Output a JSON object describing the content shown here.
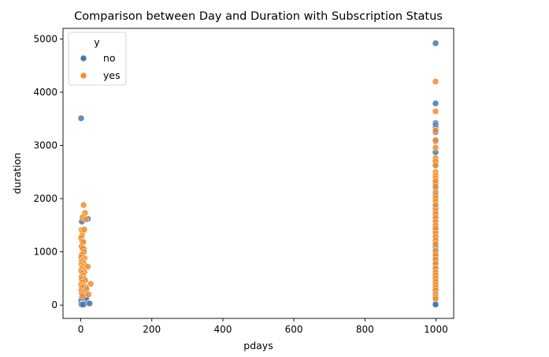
{
  "chart_data": {
    "type": "scatter",
    "title": "Comparison between Day and Duration with Subscription Status",
    "xlabel": "pdays",
    "ylabel": "duration",
    "xlim": [
      -50,
      1050
    ],
    "ylim": [
      -250,
      5200
    ],
    "xticks": [
      0,
      200,
      400,
      600,
      800,
      1000
    ],
    "yticks": [
      0,
      1000,
      2000,
      3000,
      4000,
      5000
    ],
    "grid": false,
    "legend": {
      "title": "y",
      "placement": "top-left"
    },
    "series": [
      {
        "name": "no",
        "color": "#4c78a8",
        "points": [
          [
            1,
            3510
          ],
          [
            3,
            1570
          ],
          [
            20,
            1620
          ],
          [
            8,
            1060
          ],
          [
            5,
            950
          ],
          [
            2,
            820
          ],
          [
            6,
            700
          ],
          [
            10,
            620
          ],
          [
            4,
            540
          ],
          [
            12,
            480
          ],
          [
            3,
            430
          ],
          [
            7,
            380
          ],
          [
            15,
            330
          ],
          [
            2,
            290
          ],
          [
            9,
            250
          ],
          [
            5,
            210
          ],
          [
            11,
            180
          ],
          [
            3,
            150
          ],
          [
            6,
            120
          ],
          [
            14,
            100
          ],
          [
            1,
            80
          ],
          [
            8,
            60
          ],
          [
            18,
            45
          ],
          [
            4,
            30
          ],
          [
            10,
            20
          ],
          [
            2,
            12
          ],
          [
            6,
            8
          ],
          [
            25,
            30
          ],
          [
            16,
            140
          ],
          [
            12,
            210
          ],
          [
            999,
            4920
          ],
          [
            999,
            3790
          ],
          [
            999,
            3420
          ],
          [
            999,
            3380
          ],
          [
            999,
            3330
          ],
          [
            999,
            3290
          ],
          [
            999,
            3250
          ],
          [
            999,
            3080
          ],
          [
            999,
            2870
          ],
          [
            999,
            2680
          ],
          [
            999,
            2620
          ],
          [
            999,
            2290
          ],
          [
            999,
            2200
          ],
          [
            999,
            2060
          ],
          [
            999,
            1870
          ],
          [
            999,
            1810
          ],
          [
            999,
            1680
          ],
          [
            999,
            1590
          ],
          [
            999,
            1460
          ],
          [
            999,
            1390
          ],
          [
            999,
            1300
          ],
          [
            999,
            1180
          ],
          [
            999,
            1100
          ],
          [
            999,
            1040
          ],
          [
            999,
            980
          ],
          [
            999,
            900
          ],
          [
            999,
            830
          ],
          [
            999,
            760
          ],
          [
            999,
            700
          ],
          [
            999,
            640
          ],
          [
            999,
            580
          ],
          [
            999,
            520
          ],
          [
            999,
            470
          ],
          [
            999,
            420
          ],
          [
            999,
            380
          ],
          [
            999,
            340
          ],
          [
            999,
            300
          ],
          [
            999,
            260
          ],
          [
            999,
            230
          ],
          [
            999,
            200
          ],
          [
            999,
            170
          ],
          [
            999,
            140
          ],
          [
            999,
            110
          ],
          [
            999,
            90
          ],
          [
            999,
            70
          ],
          [
            999,
            50
          ],
          [
            999,
            40
          ],
          [
            999,
            30
          ],
          [
            999,
            20
          ],
          [
            999,
            10
          ]
        ]
      },
      {
        "name": "yes",
        "color": "#f28e2b",
        "points": [
          [
            8,
            1880
          ],
          [
            12,
            1730
          ],
          [
            5,
            1650
          ],
          [
            14,
            1610
          ],
          [
            2,
            1410
          ],
          [
            6,
            1380
          ],
          [
            10,
            1420
          ],
          [
            3,
            1300
          ],
          [
            1,
            1260
          ],
          [
            4,
            1200
          ],
          [
            7,
            1180
          ],
          [
            2,
            1100
          ],
          [
            5,
            1060
          ],
          [
            9,
            1000
          ],
          [
            3,
            950
          ],
          [
            1,
            900
          ],
          [
            11,
            880
          ],
          [
            6,
            850
          ],
          [
            4,
            820
          ],
          [
            8,
            790
          ],
          [
            2,
            760
          ],
          [
            13,
            740
          ],
          [
            5,
            720
          ],
          [
            20,
            720
          ],
          [
            3,
            690
          ],
          [
            7,
            660
          ],
          [
            1,
            640
          ],
          [
            10,
            620
          ],
          [
            4,
            600
          ],
          [
            6,
            560
          ],
          [
            2,
            520
          ],
          [
            9,
            500
          ],
          [
            3,
            480
          ],
          [
            12,
            460
          ],
          [
            5,
            430
          ],
          [
            28,
            400
          ],
          [
            1,
            380
          ],
          [
            7,
            360
          ],
          [
            4,
            330
          ],
          [
            16,
            300
          ],
          [
            2,
            260
          ],
          [
            8,
            240
          ],
          [
            22,
            200
          ],
          [
            3,
            210
          ],
          [
            5,
            170
          ],
          [
            999,
            4200
          ],
          [
            999,
            3640
          ],
          [
            999,
            3280
          ],
          [
            999,
            3100
          ],
          [
            999,
            2960
          ],
          [
            999,
            2760
          ],
          [
            999,
            2700
          ],
          [
            999,
            2630
          ],
          [
            999,
            2500
          ],
          [
            999,
            2440
          ],
          [
            999,
            2390
          ],
          [
            999,
            2330
          ],
          [
            999,
            2230
          ],
          [
            999,
            2120
          ],
          [
            999,
            2010
          ],
          [
            999,
            1950
          ],
          [
            999,
            1880
          ],
          [
            999,
            1770
          ],
          [
            999,
            1720
          ],
          [
            999,
            1640
          ],
          [
            999,
            1560
          ],
          [
            999,
            1500
          ],
          [
            999,
            1440
          ],
          [
            999,
            1350
          ],
          [
            999,
            1280
          ],
          [
            999,
            1220
          ],
          [
            999,
            1150
          ],
          [
            999,
            1020
          ],
          [
            999,
            940
          ],
          [
            999,
            860
          ],
          [
            999,
            780
          ],
          [
            999,
            690
          ],
          [
            999,
            620
          ],
          [
            999,
            560
          ],
          [
            999,
            500
          ],
          [
            999,
            440
          ],
          [
            999,
            380
          ],
          [
            999,
            330
          ],
          [
            999,
            280
          ],
          [
            999,
            210
          ],
          [
            999,
            160
          ],
          [
            999,
            120
          ]
        ]
      }
    ]
  }
}
